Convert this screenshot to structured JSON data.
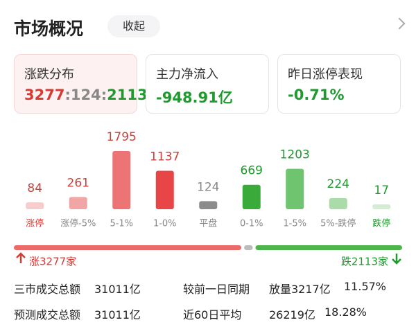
{
  "header": {
    "title": "市场概况",
    "button": "收起"
  },
  "cards": [
    {
      "label": "涨跌分布",
      "value_parts": [
        "3277",
        ":",
        "124",
        ":",
        "2113"
      ]
    },
    {
      "label": "主力净流入",
      "value": "-948.91亿"
    },
    {
      "label": "昨日涨停表现",
      "value": "-0.71%"
    }
  ],
  "chart_data": {
    "type": "bar",
    "categories": [
      "涨停",
      "涨停-5%",
      "5-1%",
      "1-0%",
      "平盘",
      "0-1%",
      "1-5%",
      "5%-跌停",
      "跌停"
    ],
    "values": [
      84,
      261,
      1795,
      1137,
      124,
      669,
      1203,
      224,
      17
    ],
    "colors": [
      "#f7cccc",
      "#f2a5a5",
      "#ec7474",
      "#e84646",
      "#8c8c8c",
      "#3aab3a",
      "#6fc46f",
      "#aadcaa",
      "#d3edd3"
    ],
    "label_colors": [
      "#c9413a",
      "#c9413a",
      "#c9413a",
      "#c9413a",
      "#888888",
      "#1e9a2e",
      "#1e9a2e",
      "#1e9a2e",
      "#1e9a2e"
    ],
    "category_colors": [
      "#d63a34",
      "#888888",
      "#888888",
      "#888888",
      "#888888",
      "#888888",
      "#888888",
      "#888888",
      "#1e9a2e"
    ]
  },
  "ratio_bar": {
    "up": 3277,
    "flat": 124,
    "down": 2113,
    "up_color": "#ec6a6a",
    "flat_color": "#bbbbbb",
    "down_color": "#4cb54c",
    "up_label": "涨3277家",
    "down_label": "跌2113家"
  },
  "stats": [
    {
      "label": "三市成交总额",
      "value": "31011亿"
    },
    {
      "label": "较前一日同期",
      "value": "放量3217亿",
      "pct": "11.57%"
    },
    {
      "label": "预测成交总额",
      "value": "31011亿"
    },
    {
      "label": "近60日平均",
      "value": "26219亿",
      "pct": "18.28%"
    }
  ]
}
